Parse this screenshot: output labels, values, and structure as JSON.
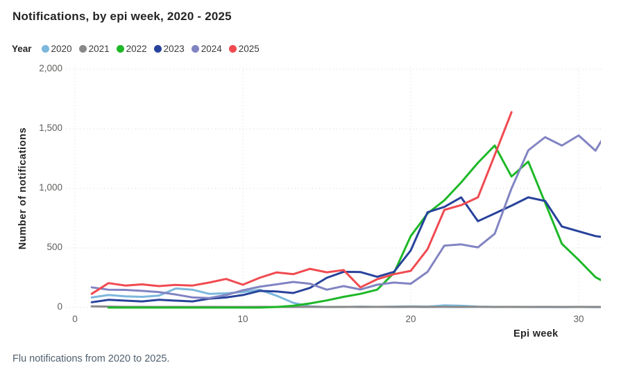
{
  "title": "Notifications, by epi week, 2020 - 2025",
  "legend": {
    "label": "Year"
  },
  "caption": "Flu notifications from 2020 to 2025.",
  "chart_data": {
    "type": "line",
    "title": "Notifications, by epi week, 2020 - 2025",
    "xlabel": "Epi week",
    "ylabel": "Number of notifications",
    "x_ticks": [
      "0",
      "10",
      "20",
      "30"
    ],
    "x_tick_values": [
      0,
      10,
      20,
      30
    ],
    "y_ticks": [
      "2,000",
      "1,500",
      "1,000",
      "500",
      "0"
    ],
    "y_tick_values": [
      2000,
      1500,
      1000,
      500,
      0
    ],
    "xlim": [
      -0.55,
      31.25
    ],
    "ylim": [
      0,
      2000
    ],
    "grid": "dotted",
    "legend_position": "top",
    "grid_color": "#d6d6d6",
    "x": [
      1,
      2,
      3,
      4,
      5,
      6,
      7,
      8,
      9,
      10,
      11,
      12,
      13,
      14,
      15,
      16,
      17,
      18,
      19,
      20,
      21,
      22,
      23,
      24,
      25,
      26,
      27,
      28,
      29,
      30,
      31,
      32
    ],
    "series": [
      {
        "name": "2020",
        "color": "#7cb7dc",
        "values": [
          85,
          105,
          95,
          90,
          100,
          160,
          150,
          115,
          120,
          130,
          150,
          100,
          40,
          10,
          5,
          5,
          8,
          6,
          8,
          10,
          8,
          18,
          15,
          8,
          6,
          5,
          5,
          4,
          4,
          5,
          4,
          4
        ]
      },
      {
        "name": "2021",
        "color": "#898989",
        "values": [
          10,
          8,
          6,
          6,
          5,
          6,
          5,
          6,
          5,
          5,
          6,
          5,
          5,
          6,
          5,
          6,
          5,
          6,
          5,
          6,
          5,
          6,
          5,
          6,
          5,
          6,
          5,
          6,
          5,
          6,
          5,
          5
        ]
      },
      {
        "name": "2022",
        "color": "#1db827",
        "values": [
          null,
          0,
          0,
          0,
          0,
          0,
          0,
          0,
          0,
          0,
          0,
          5,
          15,
          35,
          60,
          90,
          115,
          150,
          290,
          600,
          790,
          900,
          1050,
          1215,
          1360,
          1100,
          1225,
          880,
          535,
          400,
          255,
          180
        ]
      },
      {
        "name": "2023",
        "color": "#27429b",
        "values": [
          45,
          65,
          58,
          52,
          65,
          58,
          52,
          75,
          85,
          105,
          140,
          135,
          122,
          165,
          250,
          300,
          298,
          258,
          300,
          480,
          800,
          845,
          925,
          725,
          790,
          855,
          925,
          895,
          680,
          640,
          600,
          580
        ]
      },
      {
        "name": "2024",
        "color": "#8184c2",
        "values": [
          170,
          150,
          148,
          140,
          130,
          110,
          85,
          80,
          105,
          145,
          175,
          195,
          215,
          200,
          150,
          180,
          152,
          192,
          210,
          200,
          300,
          520,
          530,
          505,
          620,
          1000,
          1320,
          1430,
          1360,
          1445,
          1317,
          1550
        ]
      },
      {
        "name": "2025",
        "color": "#f04a50",
        "values": [
          115,
          205,
          185,
          195,
          180,
          190,
          185,
          210,
          240,
          192,
          250,
          295,
          280,
          325,
          296,
          315,
          170,
          238,
          280,
          308,
          490,
          820,
          860,
          925,
          1280,
          1640
        ]
      }
    ]
  }
}
